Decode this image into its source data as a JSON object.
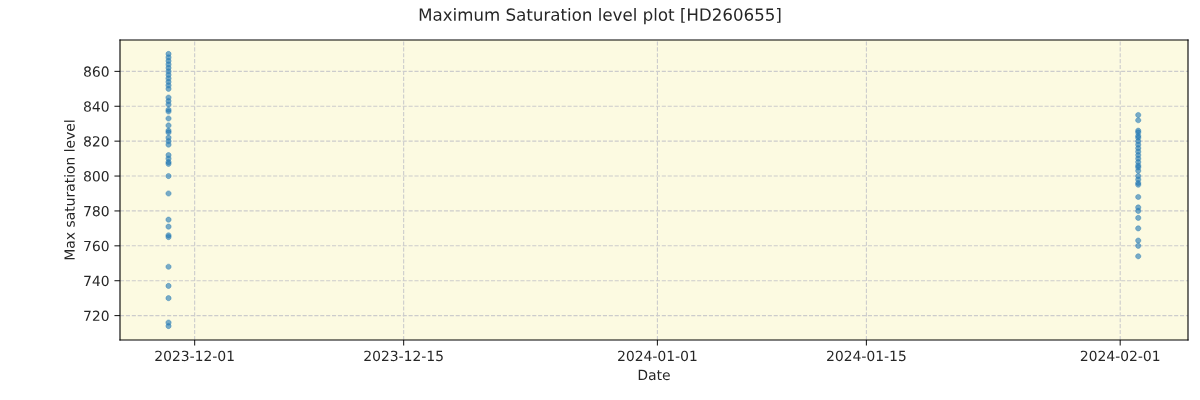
{
  "chart_data": {
    "type": "scatter",
    "title": "Maximum Saturation level plot [HD260655]",
    "xlabel": "Date",
    "ylabel": "Max saturation level",
    "series": [
      {
        "color": "#1f77b4",
        "x": [
          "2023-11-29T06:00",
          "2023-11-29T06:00",
          "2023-11-29T06:00",
          "2023-11-29T06:00",
          "2023-11-29T06:00",
          "2023-11-29T06:00",
          "2023-11-29T06:00",
          "2023-11-29T06:00",
          "2023-11-29T06:00",
          "2023-11-29T06:00",
          "2023-11-29T06:00",
          "2023-11-29T06:00",
          "2023-11-29T06:00",
          "2023-11-29T06:00",
          "2023-11-29T06:00",
          "2023-11-29T06:00",
          "2023-11-29T06:00",
          "2023-11-29T06:00",
          "2023-11-29T06:00",
          "2023-11-29T06:00",
          "2023-11-29T06:00",
          "2023-11-29T06:00",
          "2023-11-29T06:00",
          "2023-11-29T06:00",
          "2023-11-29T06:00",
          "2023-11-29T06:00",
          "2023-11-29T06:00",
          "2023-11-29T06:00",
          "2023-11-29T06:00",
          "2023-11-29T06:00",
          "2023-11-29T06:00",
          "2023-11-29T06:00",
          "2023-11-29T06:00",
          "2023-11-29T06:00",
          "2023-11-29T06:00",
          "2023-11-29T06:00",
          "2023-11-29T06:00",
          "2023-11-29T06:00",
          "2024-02-02T05:00",
          "2024-02-02T05:00",
          "2024-02-02T05:00",
          "2024-02-02T05:00",
          "2024-02-02T05:00",
          "2024-02-02T05:00",
          "2024-02-02T05:00",
          "2024-02-02T05:00",
          "2024-02-02T05:00",
          "2024-02-02T05:00",
          "2024-02-02T05:00",
          "2024-02-02T05:00",
          "2024-02-02T05:00",
          "2024-02-02T05:00",
          "2024-02-02T05:00",
          "2024-02-02T05:00",
          "2024-02-02T05:00",
          "2024-02-02T05:00",
          "2024-02-02T05:00",
          "2024-02-02T05:00",
          "2024-02-02T05:00",
          "2024-02-02T05:00",
          "2024-02-02T05:00",
          "2024-02-02T05:00",
          "2024-02-02T05:00",
          "2024-02-02T05:00",
          "2024-02-02T05:00",
          "2024-02-02T05:00"
        ],
        "values": [
          870,
          868,
          866,
          864,
          862,
          860,
          858,
          856,
          854,
          852,
          850,
          845,
          843,
          841,
          838,
          837,
          833,
          829,
          826,
          825,
          822,
          820,
          818,
          812,
          810,
          808,
          807,
          800,
          790,
          775,
          771,
          766,
          765,
          748,
          737,
          730,
          716,
          714,
          835,
          832,
          826,
          825,
          823,
          822,
          820,
          818,
          816,
          814,
          812,
          810,
          808,
          806,
          805,
          803,
          800,
          798,
          796,
          795,
          788,
          782,
          780,
          776,
          770,
          763,
          760,
          754
        ]
      }
    ],
    "marker": "circle",
    "grid": true,
    "xlim": [
      "2023-11-26T00:00",
      "2024-02-05T13:00"
    ],
    "xticks": [
      {
        "value": "2023-12-01",
        "label": "2023-12-01"
      },
      {
        "value": "2023-12-15",
        "label": "2023-12-15"
      },
      {
        "value": "2024-01-01",
        "label": "2024-01-01"
      },
      {
        "value": "2024-01-15",
        "label": "2024-01-15"
      },
      {
        "value": "2024-02-01",
        "label": "2024-02-01"
      }
    ],
    "ylim": [
      706,
      878
    ],
    "yticks": [
      720,
      740,
      760,
      780,
      800,
      820,
      840,
      860
    ]
  }
}
